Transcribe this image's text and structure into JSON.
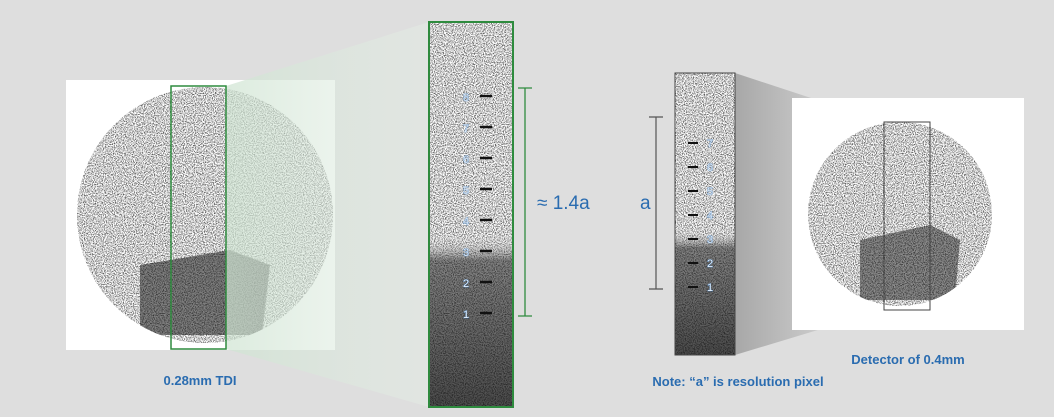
{
  "left_panel": {
    "caption": "0.28mm TDI"
  },
  "left_zoom": {
    "labels": [
      "8",
      "7",
      "6",
      "5",
      "4",
      "3",
      "2",
      "1"
    ],
    "dimension": "≈ 1.4a"
  },
  "right_zoom": {
    "labels": [
      "7",
      "6",
      "5",
      "4",
      "3",
      "2",
      "1"
    ],
    "dimension": "a"
  },
  "note": "Note: “a” is resolution pixel",
  "right_panel": {
    "caption": "Detector of 0.4mm"
  }
}
